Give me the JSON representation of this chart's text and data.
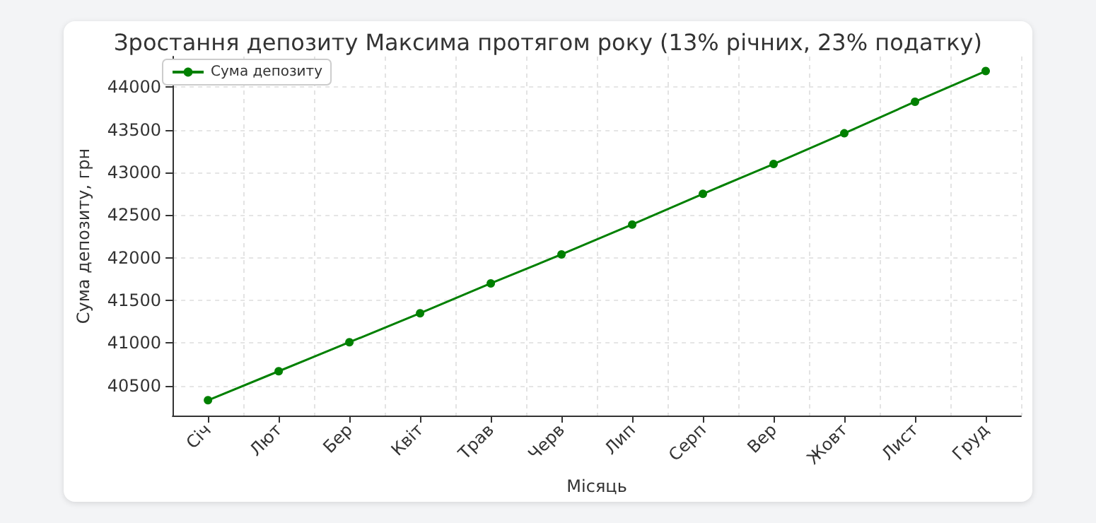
{
  "chart_data": {
    "type": "line",
    "title": "Зростання депозиту Максима протягом року (13% річних, 23% податку)",
    "xlabel": "Місяць",
    "ylabel": "Сума депозиту, грн",
    "categories": [
      "Січ",
      "Лют",
      "Бер",
      "Квіт",
      "Трав",
      "Черв",
      "Лип",
      "Серп",
      "Вер",
      "Жовт",
      "Лист",
      "Груд"
    ],
    "series": [
      {
        "name": "Сума депозиту",
        "color": "#008000",
        "values": [
          40330,
          40670,
          41010,
          41350,
          41700,
          42040,
          42390,
          42750,
          43100,
          43460,
          43830,
          44190
        ]
      }
    ],
    "ylim": [
      40150,
      44360
    ],
    "yticks": [
      40500,
      41000,
      41500,
      42000,
      42500,
      43000,
      43500,
      44000
    ],
    "grid": true,
    "legend": "top left",
    "marker": "circle",
    "line_style": "solid"
  }
}
